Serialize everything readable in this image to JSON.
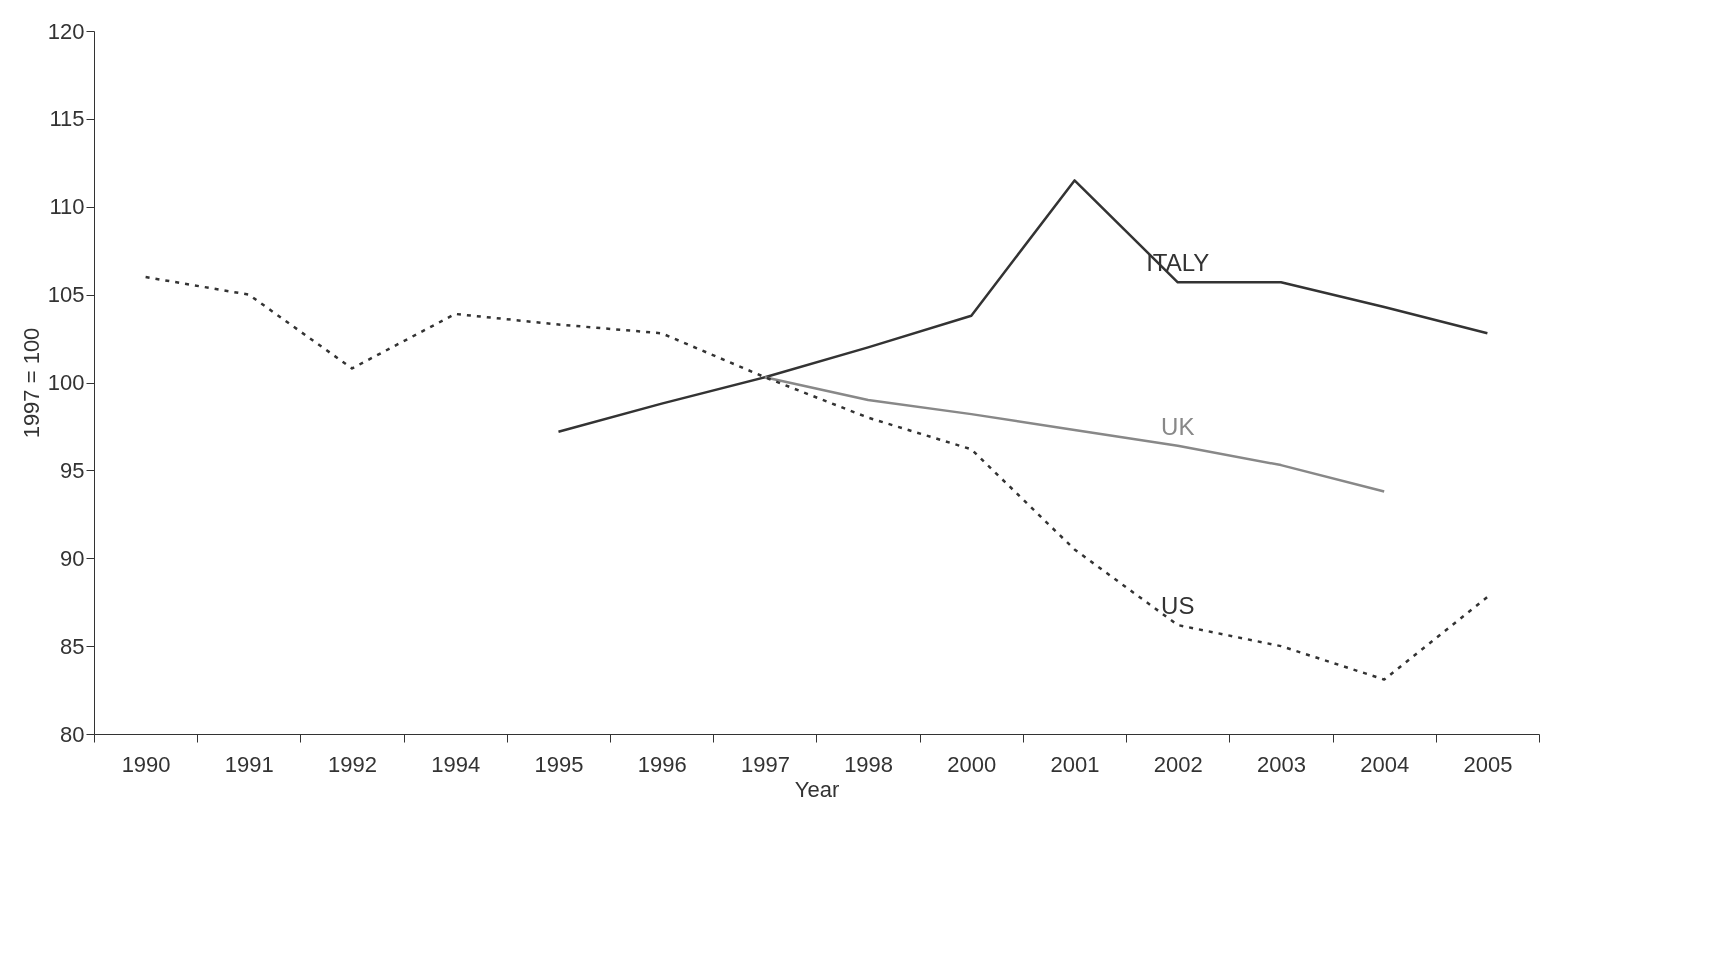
{
  "chart_data": {
    "type": "line",
    "xlabel": "Year",
    "ylabel": "1997 = 100",
    "categories": [
      "1990",
      "1991",
      "1992",
      "1994",
      "1995",
      "1996",
      "1997",
      "1998",
      "2000",
      "2001",
      "2002",
      "2003",
      "2004",
      "2005"
    ],
    "series": [
      {
        "name": "ITALY",
        "color": "#333333",
        "line_style": "solid",
        "values": [
          null,
          null,
          null,
          null,
          97.2,
          98.8,
          100.3,
          102,
          103.8,
          111.5,
          105.7,
          105.7,
          104.3,
          102.8
        ]
      },
      {
        "name": "UK",
        "color": "#888888",
        "line_style": "solid",
        "values": [
          null,
          null,
          null,
          null,
          null,
          null,
          100.3,
          99,
          98.2,
          97.3,
          96.4,
          95.3,
          93.8,
          null
        ]
      },
      {
        "name": "US",
        "color": "#333333",
        "line_style": "dotted",
        "values": [
          106,
          105,
          100.8,
          103.9,
          103.3,
          102.8,
          100.3,
          98,
          96.2,
          90.5,
          86.2,
          85,
          83.1,
          87.8
        ]
      }
    ],
    "legend": false,
    "ylim": [
      80,
      120
    ],
    "yticks": [
      80,
      85,
      90,
      95,
      100,
      105,
      110,
      115,
      120
    ],
    "grid": false,
    "marker": "none"
  }
}
